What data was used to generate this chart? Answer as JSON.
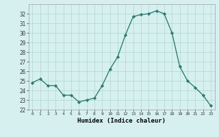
{
  "x": [
    0,
    1,
    2,
    3,
    4,
    5,
    6,
    7,
    8,
    9,
    10,
    11,
    12,
    13,
    14,
    15,
    16,
    17,
    18,
    19,
    20,
    21,
    22,
    23
  ],
  "y": [
    24.8,
    25.2,
    24.5,
    24.5,
    23.5,
    23.5,
    22.8,
    23.0,
    23.2,
    24.5,
    26.2,
    27.5,
    29.8,
    31.7,
    31.9,
    32.0,
    32.3,
    32.0,
    30.0,
    26.5,
    25.0,
    24.3,
    23.5,
    22.4
  ],
  "line_color": "#2e7d6e",
  "marker": "D",
  "marker_size": 2.2,
  "bg_color": "#d6f0f0",
  "grid_color": "#b8d8d8",
  "xlabel": "Humidex (Indice chaleur)",
  "ylim": [
    22,
    33
  ],
  "xlim": [
    -0.5,
    23.5
  ],
  "yticks": [
    22,
    23,
    24,
    25,
    26,
    27,
    28,
    29,
    30,
    31,
    32
  ],
  "xtick_labels": [
    "0",
    "1",
    "2",
    "3",
    "4",
    "5",
    "6",
    "7",
    "8",
    "9",
    "10",
    "11",
    "12",
    "13",
    "14",
    "15",
    "16",
    "17",
    "18",
    "19",
    "20",
    "21",
    "22",
    "23"
  ],
  "font_family": "monospace"
}
